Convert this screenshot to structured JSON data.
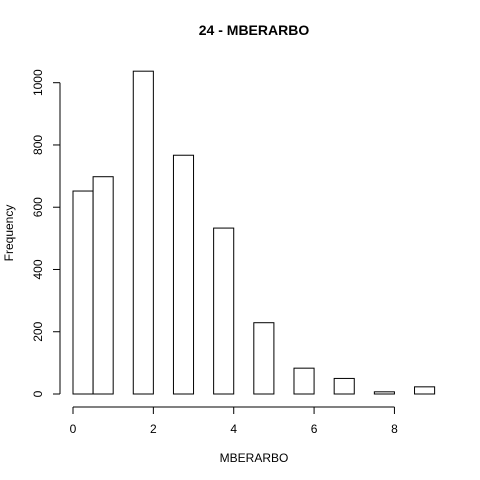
{
  "chart_data": {
    "type": "bar",
    "title": "24 - MBERARBO",
    "xlabel": "MBERARBO",
    "ylabel": "Frequency",
    "bins": [
      {
        "start": 0.0,
        "end": 0.5,
        "count": 652
      },
      {
        "start": 0.5,
        "end": 1.0,
        "count": 698
      },
      {
        "start": 1.0,
        "end": 1.5,
        "count": 0
      },
      {
        "start": 1.5,
        "end": 2.0,
        "count": 1037
      },
      {
        "start": 2.0,
        "end": 2.5,
        "count": 0
      },
      {
        "start": 2.5,
        "end": 3.0,
        "count": 767
      },
      {
        "start": 3.0,
        "end": 3.5,
        "count": 0
      },
      {
        "start": 3.5,
        "end": 4.0,
        "count": 533
      },
      {
        "start": 4.0,
        "end": 4.5,
        "count": 0
      },
      {
        "start": 4.5,
        "end": 5.0,
        "count": 229
      },
      {
        "start": 5.0,
        "end": 5.5,
        "count": 0
      },
      {
        "start": 5.5,
        "end": 6.0,
        "count": 83
      },
      {
        "start": 6.0,
        "end": 6.5,
        "count": 0
      },
      {
        "start": 6.5,
        "end": 7.0,
        "count": 50
      },
      {
        "start": 7.0,
        "end": 7.5,
        "count": 0
      },
      {
        "start": 7.5,
        "end": 8.0,
        "count": 7
      },
      {
        "start": 8.0,
        "end": 8.5,
        "count": 0
      },
      {
        "start": 8.5,
        "end": 9.0,
        "count": 23
      }
    ],
    "xlim": [
      0,
      9
    ],
    "ylim": [
      0,
      1037
    ],
    "xticks": [
      0,
      2,
      4,
      6,
      8
    ],
    "yticks": [
      0,
      200,
      400,
      600,
      800,
      1000
    ],
    "grid": false
  }
}
